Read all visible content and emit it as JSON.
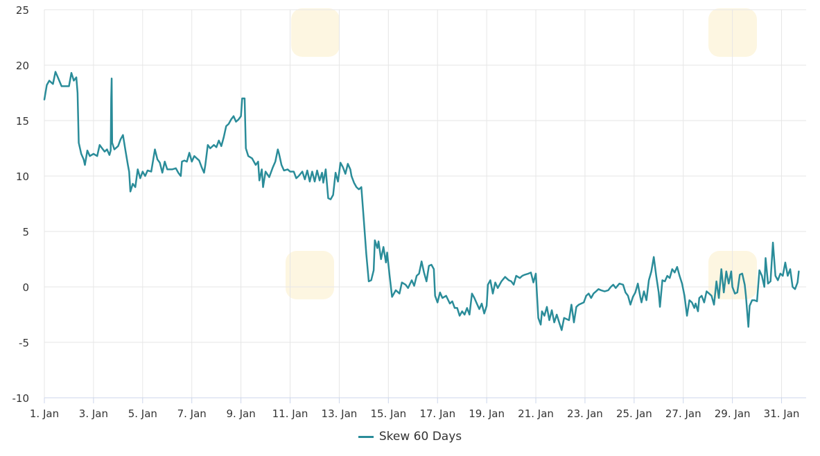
{
  "chart_data": {
    "type": "line",
    "title": "",
    "xlabel": "",
    "ylabel": "",
    "x_ticks": [
      "1. Jan",
      "3. Jan",
      "5. Jan",
      "7. Jan",
      "9. Jan",
      "11. Jan",
      "13. Jan",
      "15. Jan",
      "17. Jan",
      "19. Jan",
      "21. Jan",
      "23. Jan",
      "25. Jan",
      "27. Jan",
      "29. Jan",
      "31. Jan"
    ],
    "y_ticks": [
      "25",
      "20",
      "15",
      "10",
      "5",
      "0",
      "-5",
      "-10"
    ],
    "ylim": [
      -10,
      25
    ],
    "xlim": [
      1,
      32
    ],
    "grid": true,
    "legend_position": "bottom-center",
    "series": [
      {
        "name": "Skew 60 Days",
        "color": "#2a8c99",
        "points": [
          [
            1.0,
            16.9
          ],
          [
            1.1,
            18.2
          ],
          [
            1.2,
            18.6
          ],
          [
            1.35,
            18.3
          ],
          [
            1.45,
            19.4
          ],
          [
            1.55,
            18.9
          ],
          [
            1.7,
            18.1
          ],
          [
            1.85,
            18.1
          ],
          [
            2.0,
            18.1
          ],
          [
            2.1,
            19.3
          ],
          [
            2.2,
            18.6
          ],
          [
            2.3,
            18.9
          ],
          [
            2.35,
            17.5
          ],
          [
            2.4,
            13.0
          ],
          [
            2.5,
            12.0
          ],
          [
            2.6,
            11.5
          ],
          [
            2.65,
            11.0
          ],
          [
            2.75,
            12.3
          ],
          [
            2.85,
            11.8
          ],
          [
            3.0,
            12.0
          ],
          [
            3.15,
            11.8
          ],
          [
            3.25,
            12.8
          ],
          [
            3.35,
            12.5
          ],
          [
            3.45,
            12.2
          ],
          [
            3.55,
            12.4
          ],
          [
            3.65,
            11.9
          ],
          [
            3.7,
            12.3
          ],
          [
            3.72,
            17.0
          ],
          [
            3.74,
            18.8
          ],
          [
            3.76,
            13.0
          ],
          [
            3.85,
            12.4
          ],
          [
            4.0,
            12.7
          ],
          [
            4.1,
            13.3
          ],
          [
            4.2,
            13.7
          ],
          [
            4.3,
            12.3
          ],
          [
            4.4,
            11.0
          ],
          [
            4.45,
            10.4
          ],
          [
            4.5,
            8.6
          ],
          [
            4.6,
            9.3
          ],
          [
            4.7,
            9.0
          ],
          [
            4.8,
            10.6
          ],
          [
            4.9,
            9.8
          ],
          [
            5.0,
            10.4
          ],
          [
            5.1,
            10.0
          ],
          [
            5.2,
            10.5
          ],
          [
            5.35,
            10.4
          ],
          [
            5.5,
            12.4
          ],
          [
            5.6,
            11.5
          ],
          [
            5.7,
            11.2
          ],
          [
            5.8,
            10.3
          ],
          [
            5.9,
            11.3
          ],
          [
            6.0,
            10.6
          ],
          [
            6.2,
            10.6
          ],
          [
            6.35,
            10.7
          ],
          [
            6.45,
            10.3
          ],
          [
            6.55,
            10.0
          ],
          [
            6.6,
            11.3
          ],
          [
            6.7,
            11.4
          ],
          [
            6.8,
            11.3
          ],
          [
            6.9,
            12.1
          ],
          [
            7.0,
            11.3
          ],
          [
            7.1,
            11.8
          ],
          [
            7.2,
            11.6
          ],
          [
            7.3,
            11.4
          ],
          [
            7.4,
            10.8
          ],
          [
            7.5,
            10.3
          ],
          [
            7.55,
            11.0
          ],
          [
            7.65,
            12.8
          ],
          [
            7.75,
            12.5
          ],
          [
            7.9,
            12.8
          ],
          [
            8.0,
            12.6
          ],
          [
            8.1,
            13.2
          ],
          [
            8.2,
            12.7
          ],
          [
            8.3,
            13.5
          ],
          [
            8.4,
            14.5
          ],
          [
            8.5,
            14.7
          ],
          [
            8.6,
            15.1
          ],
          [
            8.7,
            15.4
          ],
          [
            8.8,
            14.9
          ],
          [
            8.9,
            15.1
          ],
          [
            9.0,
            15.4
          ],
          [
            9.05,
            17.0
          ],
          [
            9.15,
            17.0
          ],
          [
            9.2,
            12.5
          ],
          [
            9.3,
            11.8
          ],
          [
            9.45,
            11.6
          ],
          [
            9.6,
            11.0
          ],
          [
            9.7,
            11.3
          ],
          [
            9.75,
            9.6
          ],
          [
            9.85,
            10.6
          ],
          [
            9.9,
            9.0
          ],
          [
            10.0,
            10.4
          ],
          [
            10.15,
            9.9
          ],
          [
            10.3,
            10.8
          ],
          [
            10.4,
            11.3
          ],
          [
            10.5,
            12.4
          ],
          [
            10.55,
            12.0
          ],
          [
            10.65,
            11.0
          ],
          [
            10.75,
            10.5
          ],
          [
            10.9,
            10.6
          ],
          [
            11.0,
            10.4
          ],
          [
            11.15,
            10.4
          ],
          [
            11.25,
            9.8
          ],
          [
            11.35,
            10.0
          ],
          [
            11.5,
            10.4
          ],
          [
            11.6,
            9.7
          ],
          [
            11.7,
            10.5
          ],
          [
            11.8,
            9.5
          ],
          [
            11.9,
            10.4
          ],
          [
            12.0,
            9.5
          ],
          [
            12.1,
            10.5
          ],
          [
            12.2,
            9.6
          ],
          [
            12.3,
            10.3
          ],
          [
            12.35,
            9.4
          ],
          [
            12.45,
            10.6
          ],
          [
            12.55,
            8.0
          ],
          [
            12.65,
            7.9
          ],
          [
            12.75,
            8.3
          ],
          [
            12.85,
            10.3
          ],
          [
            12.95,
            9.5
          ],
          [
            13.05,
            11.2
          ],
          [
            13.15,
            10.8
          ],
          [
            13.25,
            10.2
          ],
          [
            13.35,
            11.1
          ],
          [
            13.45,
            10.6
          ],
          [
            13.5,
            10.0
          ],
          [
            13.6,
            9.4
          ],
          [
            13.7,
            9.0
          ],
          [
            13.8,
            8.8
          ],
          [
            13.9,
            9.0
          ],
          [
            14.0,
            6.0
          ],
          [
            14.1,
            3.0
          ],
          [
            14.2,
            0.5
          ],
          [
            14.3,
            0.6
          ],
          [
            14.4,
            1.5
          ],
          [
            14.45,
            4.2
          ],
          [
            14.55,
            3.5
          ],
          [
            14.6,
            4.1
          ],
          [
            14.7,
            2.5
          ],
          [
            14.8,
            3.6
          ],
          [
            14.9,
            2.2
          ],
          [
            14.95,
            3.1
          ],
          [
            15.05,
            1.0
          ],
          [
            15.15,
            -0.9
          ],
          [
            15.3,
            -0.3
          ],
          [
            15.45,
            -0.6
          ],
          [
            15.55,
            0.4
          ],
          [
            15.7,
            0.2
          ],
          [
            15.8,
            -0.1
          ],
          [
            15.95,
            0.6
          ],
          [
            16.05,
            0.1
          ],
          [
            16.15,
            1.0
          ],
          [
            16.25,
            1.2
          ],
          [
            16.35,
            2.3
          ],
          [
            16.45,
            1.3
          ],
          [
            16.55,
            0.5
          ],
          [
            16.65,
            1.9
          ],
          [
            16.75,
            2.0
          ],
          [
            16.85,
            1.6
          ],
          [
            16.9,
            -0.8
          ],
          [
            17.0,
            -1.4
          ],
          [
            17.1,
            -0.5
          ],
          [
            17.2,
            -1.0
          ],
          [
            17.35,
            -0.8
          ],
          [
            17.5,
            -1.5
          ],
          [
            17.6,
            -1.3
          ],
          [
            17.7,
            -1.9
          ],
          [
            17.8,
            -1.9
          ],
          [
            17.9,
            -2.6
          ],
          [
            18.0,
            -2.2
          ],
          [
            18.1,
            -2.5
          ],
          [
            18.2,
            -1.9
          ],
          [
            18.3,
            -2.5
          ],
          [
            18.4,
            -0.6
          ],
          [
            18.5,
            -1.0
          ],
          [
            18.6,
            -1.5
          ],
          [
            18.7,
            -2.0
          ],
          [
            18.8,
            -1.5
          ],
          [
            18.9,
            -2.4
          ],
          [
            19.0,
            -1.7
          ],
          [
            19.05,
            0.2
          ],
          [
            19.15,
            0.6
          ],
          [
            19.25,
            -0.6
          ],
          [
            19.35,
            0.4
          ],
          [
            19.45,
            -0.1
          ],
          [
            19.6,
            0.5
          ],
          [
            19.75,
            0.9
          ],
          [
            19.9,
            0.6
          ],
          [
            20.0,
            0.5
          ],
          [
            20.1,
            0.2
          ],
          [
            20.2,
            1.0
          ],
          [
            20.35,
            0.8
          ],
          [
            20.45,
            1.0
          ],
          [
            20.55,
            1.1
          ],
          [
            20.7,
            1.2
          ],
          [
            20.8,
            1.3
          ],
          [
            20.9,
            0.4
          ],
          [
            21.0,
            1.2
          ],
          [
            21.1,
            -2.8
          ],
          [
            21.2,
            -3.4
          ],
          [
            21.25,
            -2.2
          ],
          [
            21.35,
            -2.6
          ],
          [
            21.45,
            -1.8
          ],
          [
            21.55,
            -3.0
          ],
          [
            21.65,
            -2.1
          ],
          [
            21.75,
            -3.2
          ],
          [
            21.85,
            -2.5
          ],
          [
            21.95,
            -3.2
          ],
          [
            22.05,
            -3.9
          ],
          [
            22.15,
            -2.8
          ],
          [
            22.25,
            -2.9
          ],
          [
            22.35,
            -3.0
          ],
          [
            22.45,
            -1.6
          ],
          [
            22.55,
            -3.2
          ],
          [
            22.65,
            -1.8
          ],
          [
            22.75,
            -1.6
          ],
          [
            22.85,
            -1.5
          ],
          [
            22.95,
            -1.4
          ],
          [
            23.05,
            -0.8
          ],
          [
            23.15,
            -0.6
          ],
          [
            23.25,
            -1.0
          ],
          [
            23.35,
            -0.6
          ],
          [
            23.45,
            -0.4
          ],
          [
            23.55,
            -0.2
          ],
          [
            23.65,
            -0.3
          ],
          [
            23.8,
            -0.4
          ],
          [
            23.95,
            -0.3
          ],
          [
            24.05,
            0.0
          ],
          [
            24.15,
            0.2
          ],
          [
            24.25,
            -0.1
          ],
          [
            24.4,
            0.3
          ],
          [
            24.55,
            0.2
          ],
          [
            24.65,
            -0.5
          ],
          [
            24.75,
            -0.8
          ],
          [
            24.85,
            -1.6
          ],
          [
            24.95,
            -0.9
          ],
          [
            25.05,
            -0.5
          ],
          [
            25.15,
            0.3
          ],
          [
            25.25,
            -0.9
          ],
          [
            25.3,
            -1.4
          ],
          [
            25.4,
            -0.4
          ],
          [
            25.5,
            -1.2
          ],
          [
            25.6,
            0.6
          ],
          [
            25.7,
            1.4
          ],
          [
            25.8,
            2.7
          ],
          [
            25.9,
            1.0
          ],
          [
            26.0,
            -0.5
          ],
          [
            26.05,
            -1.8
          ],
          [
            26.15,
            0.6
          ],
          [
            26.25,
            0.5
          ],
          [
            26.35,
            1.0
          ],
          [
            26.45,
            0.8
          ],
          [
            26.55,
            1.6
          ],
          [
            26.65,
            1.3
          ],
          [
            26.75,
            1.8
          ],
          [
            26.85,
            1.0
          ],
          [
            26.95,
            0.3
          ],
          [
            27.05,
            -0.8
          ],
          [
            27.15,
            -2.6
          ],
          [
            27.25,
            -1.2
          ],
          [
            27.35,
            -1.4
          ],
          [
            27.45,
            -1.9
          ],
          [
            27.5,
            -1.5
          ],
          [
            27.6,
            -2.2
          ],
          [
            27.65,
            -1.0
          ],
          [
            27.75,
            -0.8
          ],
          [
            27.85,
            -1.4
          ],
          [
            27.95,
            -0.4
          ],
          [
            28.05,
            -0.6
          ],
          [
            28.15,
            -0.8
          ],
          [
            28.25,
            -1.6
          ],
          [
            28.35,
            0.5
          ],
          [
            28.45,
            -1.0
          ],
          [
            28.55,
            1.6
          ],
          [
            28.65,
            -0.5
          ],
          [
            28.75,
            1.4
          ],
          [
            28.85,
            0.3
          ],
          [
            28.95,
            1.4
          ],
          [
            29.0,
            0.0
          ],
          [
            29.1,
            -0.6
          ],
          [
            29.2,
            -0.5
          ],
          [
            29.3,
            1.1
          ],
          [
            29.4,
            1.2
          ],
          [
            29.5,
            0.2
          ],
          [
            29.55,
            -0.8
          ],
          [
            29.65,
            -3.6
          ],
          [
            29.7,
            -1.7
          ],
          [
            29.8,
            -1.2
          ],
          [
            29.9,
            -1.2
          ],
          [
            30.0,
            -1.3
          ],
          [
            30.1,
            1.5
          ],
          [
            30.2,
            1.0
          ],
          [
            30.3,
            0.0
          ],
          [
            30.35,
            2.6
          ],
          [
            30.45,
            0.3
          ],
          [
            30.55,
            0.5
          ],
          [
            30.65,
            4.0
          ],
          [
            30.75,
            1.0
          ],
          [
            30.85,
            0.6
          ],
          [
            30.95,
            1.2
          ],
          [
            31.05,
            1.0
          ],
          [
            31.15,
            2.2
          ],
          [
            31.25,
            1.0
          ],
          [
            31.35,
            1.6
          ],
          [
            31.45,
            0.0
          ],
          [
            31.55,
            -0.2
          ],
          [
            31.65,
            0.4
          ],
          [
            31.7,
            1.4
          ]
        ]
      }
    ]
  },
  "legend": {
    "label": "Skew 60 Days"
  }
}
